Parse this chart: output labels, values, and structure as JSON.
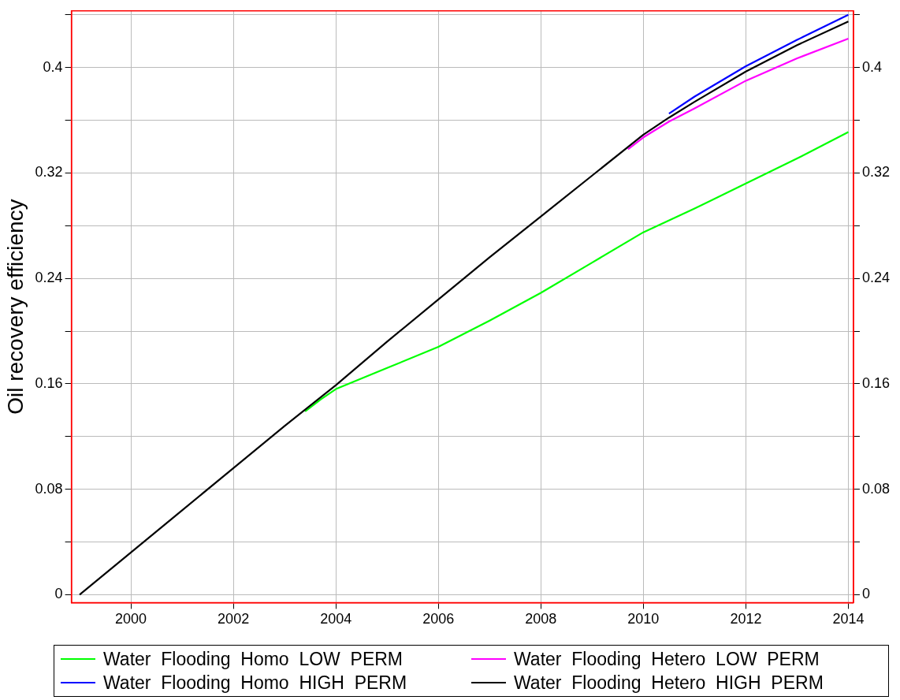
{
  "chart_data": {
    "type": "line",
    "ylabel": "Oil recovery efficiency",
    "xlim": [
      1998.84,
      2014.1
    ],
    "xticks": [
      2000,
      2002,
      2004,
      2006,
      2008,
      2010,
      2012,
      2014
    ],
    "ylim": [
      -0.006,
      0.443
    ],
    "yticks": [
      0,
      {
        "value": 0.04,
        "label": null
      },
      0.08,
      {
        "value": 0.12,
        "label": null
      },
      0.16,
      {
        "value": 0.2,
        "label": null
      },
      0.24,
      {
        "value": 0.28,
        "label": null
      },
      0.32,
      {
        "value": 0.36,
        "label": null
      },
      0.4,
      {
        "value": 0.44,
        "label": null
      }
    ],
    "y2lim": [
      -0.006,
      0.443
    ],
    "y2ticks": [
      0,
      {
        "value": 0.04,
        "label": null
      },
      0.08,
      {
        "value": 0.12,
        "label": null
      },
      0.16,
      {
        "value": 0.2,
        "label": null
      },
      0.24,
      {
        "value": 0.28,
        "label": null
      },
      0.32,
      {
        "value": 0.36,
        "label": null
      },
      0.4,
      {
        "value": 0.44,
        "label": null
      }
    ],
    "grid": true,
    "legend": "bottom",
    "marker": "none",
    "line_style": "solid",
    "series": [
      {
        "name": "Water  Flooding  Homo  LOW  PERM",
        "color": "#00ff00",
        "x": [
          2003.4,
          2003.7,
          2004,
          2005,
          2006,
          2007,
          2008,
          2009,
          2010,
          2011,
          2012,
          2013,
          2014
        ],
        "values": [
          0.139,
          0.148,
          0.156,
          0.172,
          0.188,
          0.208,
          0.229,
          0.252,
          0.275,
          0.293,
          0.312,
          0.331,
          0.351
        ]
      },
      {
        "name": "Water  Flooding  Hetero  LOW  PERM",
        "color": "#ff00ff",
        "x": [
          2009.7,
          2010,
          2010.5,
          2011,
          2012,
          2013,
          2014
        ],
        "values": [
          0.338,
          0.347,
          0.359,
          0.369,
          0.39,
          0.407,
          0.422
        ]
      },
      {
        "name": "Water  Flooding  Homo  HIGH  PERM",
        "color": "#0000ff",
        "x": [
          2010.5,
          2011,
          2012,
          2013,
          2014
        ],
        "values": [
          0.365,
          0.378,
          0.401,
          0.421,
          0.44
        ]
      },
      {
        "name": "Water  Flooding  Hetero  HIGH  PERM",
        "color": "#000000",
        "x": [
          1999,
          2000,
          2001,
          2002,
          2003,
          2004,
          2005,
          2006,
          2007,
          2008,
          2009,
          2010,
          2010.5,
          2011,
          2012,
          2013,
          2014
        ],
        "values": [
          0,
          0.032,
          0.064,
          0.096,
          0.128,
          0.159,
          0.192,
          0.224,
          0.256,
          0.287,
          0.318,
          0.349,
          0.362,
          0.374,
          0.397,
          0.417,
          0.435
        ]
      }
    ]
  }
}
